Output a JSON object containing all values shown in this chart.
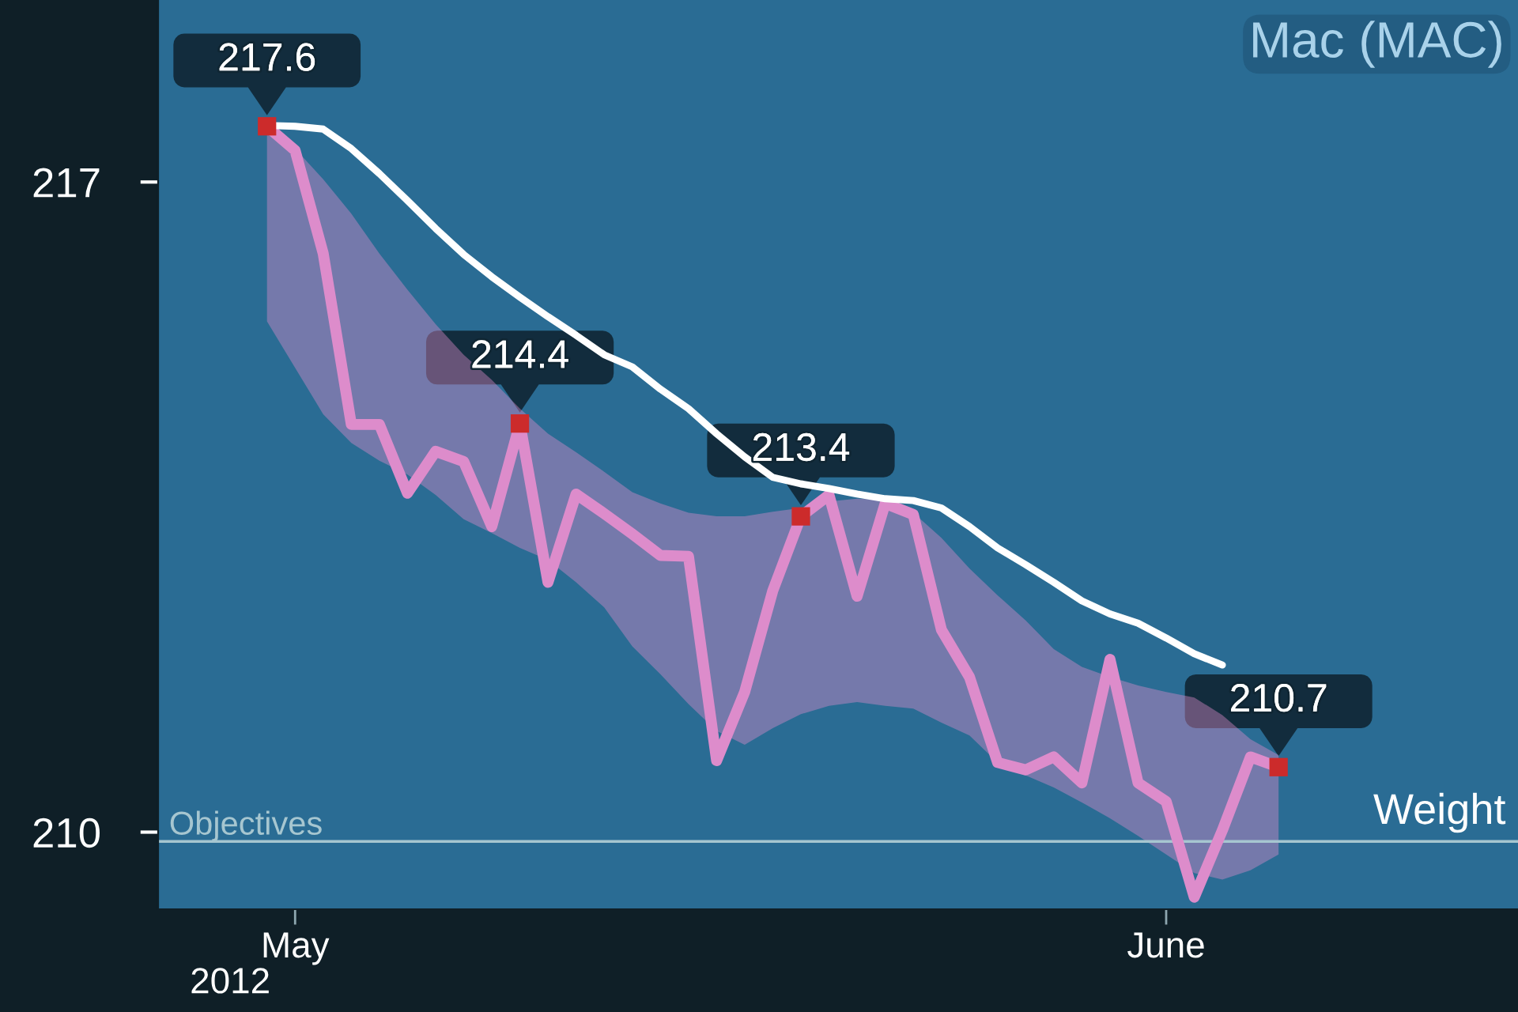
{
  "chart_data": {
    "type": "line",
    "title": "Mac (MAC)",
    "xlabel": "2012",
    "ylabel": "Weight",
    "x": [
      "2012-04-30",
      "2012-05-01",
      "2012-05-02",
      "2012-05-03",
      "2012-05-04",
      "2012-05-05",
      "2012-05-06",
      "2012-05-07",
      "2012-05-08",
      "2012-05-09",
      "2012-05-10",
      "2012-05-11",
      "2012-05-12",
      "2012-05-13",
      "2012-05-14",
      "2012-05-15",
      "2012-05-16",
      "2012-05-17",
      "2012-05-18",
      "2012-05-19",
      "2012-05-20",
      "2012-05-21",
      "2012-05-22",
      "2012-05-23",
      "2012-05-24",
      "2012-05-25",
      "2012-05-26",
      "2012-05-27",
      "2012-05-28",
      "2012-05-29",
      "2012-05-30",
      "2012-05-31",
      "2012-06-01",
      "2012-06-02",
      "2012-06-03",
      "2012-06-04",
      "2012-06-05"
    ],
    "series": [
      {
        "color": "#dd8ccb",
        "values": [
          217.6,
          217.34,
          216.23,
          214.39,
          214.39,
          213.65,
          214.1,
          213.99,
          213.29,
          214.4,
          212.69,
          213.64,
          213.43,
          213.21,
          212.98,
          212.97,
          210.77,
          211.51,
          212.6,
          213.4,
          213.63,
          212.54,
          213.54,
          213.42,
          212.18,
          211.67,
          210.75,
          210.67,
          210.81,
          210.53,
          211.86,
          210.53,
          210.33,
          209.3,
          210.02,
          210.81,
          210.7
        ],
        "lower": [
          215.5,
          215.0,
          214.5,
          214.19,
          214.0,
          213.85,
          213.63,
          213.37,
          213.22,
          213.06,
          212.93,
          212.69,
          212.42,
          212.0,
          211.7,
          211.38,
          211.09,
          210.94,
          211.12,
          211.27,
          211.36,
          211.4,
          211.36,
          211.33,
          211.18,
          211.04,
          210.75,
          210.61,
          210.48,
          210.32,
          210.15,
          209.96,
          209.76,
          209.56,
          209.49,
          209.59,
          209.76
        ],
        "upper": [
          217.63,
          217.36,
          217.03,
          216.66,
          216.23,
          215.84,
          215.47,
          215.14,
          214.87,
          214.56,
          214.29,
          214.09,
          213.88,
          213.66,
          213.54,
          213.44,
          213.4,
          213.4,
          213.45,
          213.49,
          213.56,
          213.59,
          213.58,
          213.44,
          213.17,
          212.84,
          212.55,
          212.28,
          211.97,
          211.78,
          211.67,
          211.58,
          211.51,
          211.45,
          211.26,
          211.0,
          210.83
        ]
      },
      {
        "color": "#ffffff",
        "values": [
          217.61,
          217.6,
          217.57,
          217.36,
          217.09,
          216.8,
          216.5,
          216.22,
          215.98,
          215.76,
          215.55,
          215.35,
          215.14,
          215.01,
          214.77,
          214.56,
          214.29,
          214.04,
          213.82,
          213.75,
          213.7,
          213.64,
          213.59,
          213.57,
          213.49,
          213.29,
          213.06,
          212.88,
          212.69,
          212.49,
          212.35,
          212.25,
          212.09,
          211.92,
          211.8,
          null,
          null
        ]
      },
      {
        "type": "scatter",
        "color": "#cc2b2b",
        "marker": "square",
        "x": [
          "2012-04-30",
          "2012-05-09",
          "2012-05-19",
          "2012-06-05"
        ],
        "values": [
          217.6,
          214.4,
          213.4,
          210.7
        ],
        "value_labels": [
          "217.6",
          "214.4",
          "213.4",
          "210.7"
        ]
      }
    ],
    "xlim": [
      "2012-04-26T03:00",
      "2012-06-13T12:30"
    ],
    "xticks": [
      {
        "value": "2012-05-01",
        "label": "May"
      },
      {
        "value": "2012-06-01",
        "label": "June"
      }
    ],
    "ylim": [
      209.17,
      218.96
    ],
    "yticks": [
      210,
      217
    ],
    "ref_lines": [
      {
        "axis": "y",
        "value": 209.9,
        "label": "Objectives",
        "color": "#a6c6d0"
      }
    ]
  }
}
